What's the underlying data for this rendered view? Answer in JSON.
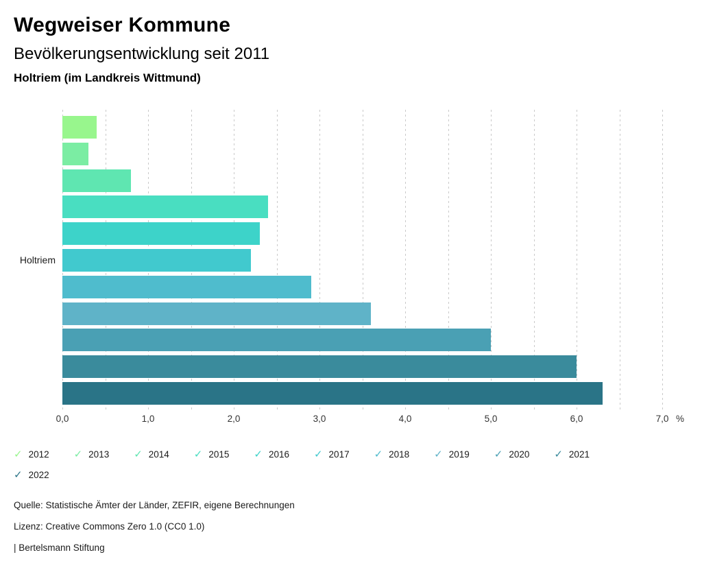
{
  "header": {
    "title": "Wegweiser Kommune",
    "subtitle": "Bevölkerungsentwicklung seit 2011",
    "location": "Holtriem (im Landkreis Wittmund)"
  },
  "chart_data": {
    "type": "bar",
    "orientation": "horizontal",
    "title": "Bevölkerungsentwicklung seit 2011",
    "group_label": "Holtriem",
    "categories": [
      "2012",
      "2013",
      "2014",
      "2015",
      "2016",
      "2017",
      "2018",
      "2019",
      "2020",
      "2021",
      "2022"
    ],
    "values": [
      0.4,
      0.3,
      0.8,
      2.4,
      2.3,
      2.2,
      2.9,
      3.6,
      5.0,
      6.0,
      6.3
    ],
    "colors": [
      "#98F68D",
      "#7BEDA3",
      "#5FE6B1",
      "#49DEC1",
      "#3DD3C9",
      "#41C9CE",
      "#4FBCCD",
      "#5FB3C8",
      "#4AA0B4",
      "#3A8B9C",
      "#2A7487"
    ],
    "xlim": [
      0,
      7
    ],
    "x_grid_step": 0.5,
    "x_major_tick": 1,
    "tick_labels": [
      "0,0",
      "1,0",
      "2,0",
      "3,0",
      "4,0",
      "5,0",
      "6,0",
      "7,0"
    ],
    "xlabel_unit": "%",
    "grid": true,
    "legend_position": "bottom"
  },
  "legend": {
    "check_icon": "✓"
  },
  "footer": {
    "source": "Quelle: Statistische Ämter der Länder, ZEFIR, eigene Berechnungen",
    "license": "Lizenz: Creative Commons Zero 1.0 (CC0 1.0)",
    "attribution": "| Bertelsmann Stiftung"
  }
}
